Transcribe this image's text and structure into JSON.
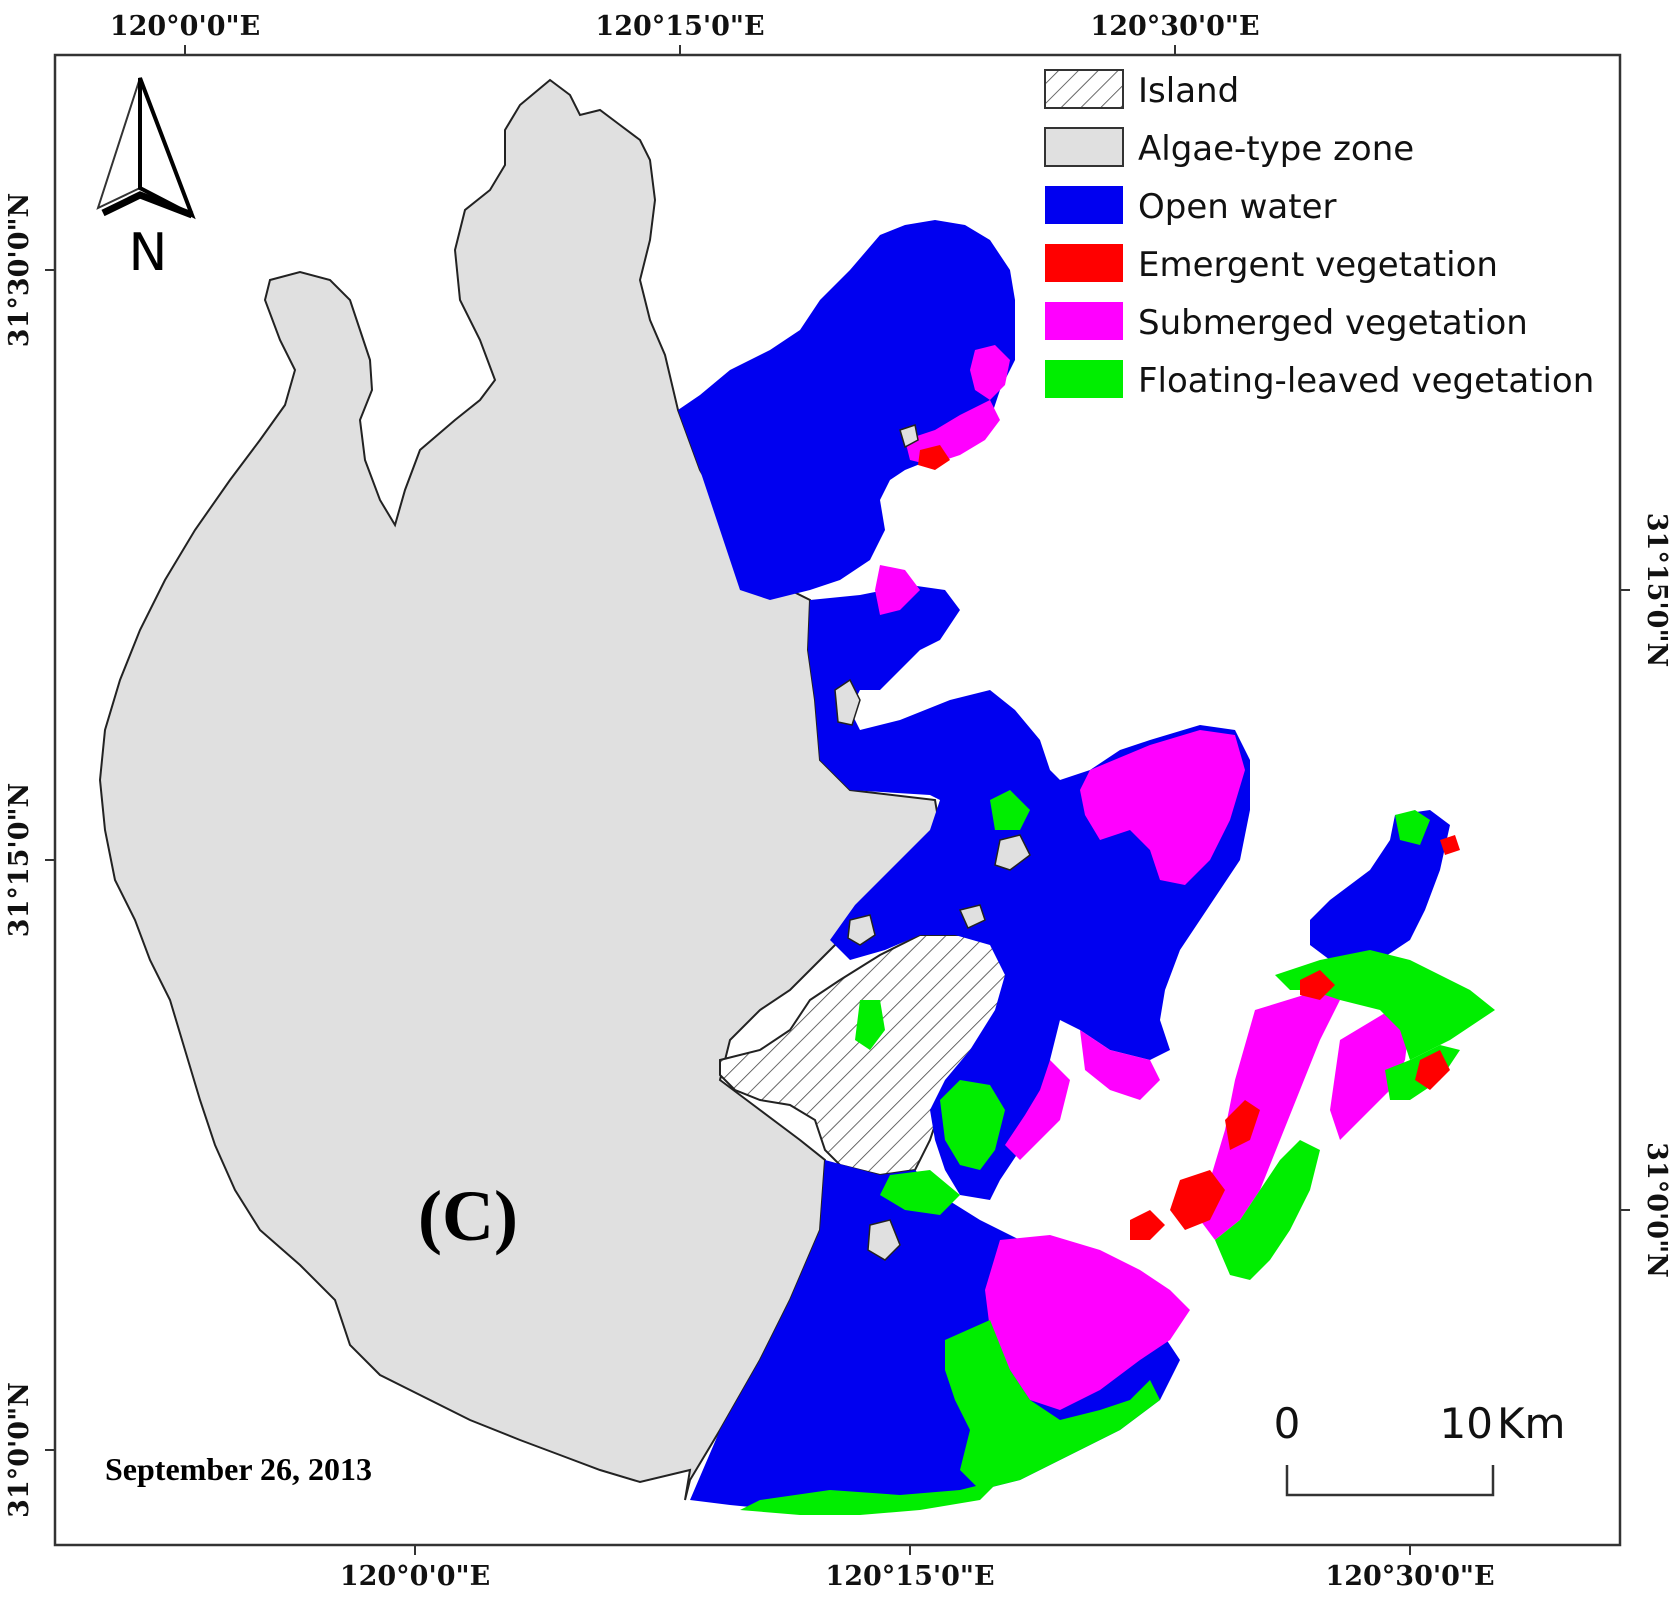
{
  "axis_labels": {
    "top": [
      "120°0'0\"E",
      "120°15'0\"E",
      "120°30'0\"E"
    ],
    "bottom": [
      "120°0'0\"E",
      "120°15'0\"E",
      "120°30'0\"E"
    ],
    "left": [
      "31°30'0\"N",
      "31°15'0\"N",
      "31°0'0\"N"
    ],
    "right": [
      "31°15'0\"N",
      "31°0'0\"N"
    ]
  },
  "legend": [
    {
      "label": "Island",
      "color": "#ffffff",
      "pattern": "hatch"
    },
    {
      "label": "Algae-type zone",
      "color": "#e0e0e0",
      "pattern": "solid"
    },
    {
      "label": "Open water",
      "color": "#0000f0",
      "pattern": "solid"
    },
    {
      "label": "Emergent vegetation",
      "color": "#ff0000",
      "pattern": "solid"
    },
    {
      "label": "Submerged vegetation",
      "color": "#ff00ff",
      "pattern": "solid"
    },
    {
      "label": "Floating-leaved vegetation",
      "color": "#00ee00",
      "pattern": "solid"
    }
  ],
  "panel_label": "(C)",
  "date": "September 26, 2013",
  "north_label": "N",
  "scale_bar": {
    "start": "0",
    "end": "10",
    "unit": "Km"
  },
  "colors": {
    "algae": "#e0e0e0",
    "water": "#0000f0",
    "emergent": "#ff0000",
    "submerged": "#ff00ff",
    "floating": "#00ee00",
    "outline": "#222222"
  }
}
